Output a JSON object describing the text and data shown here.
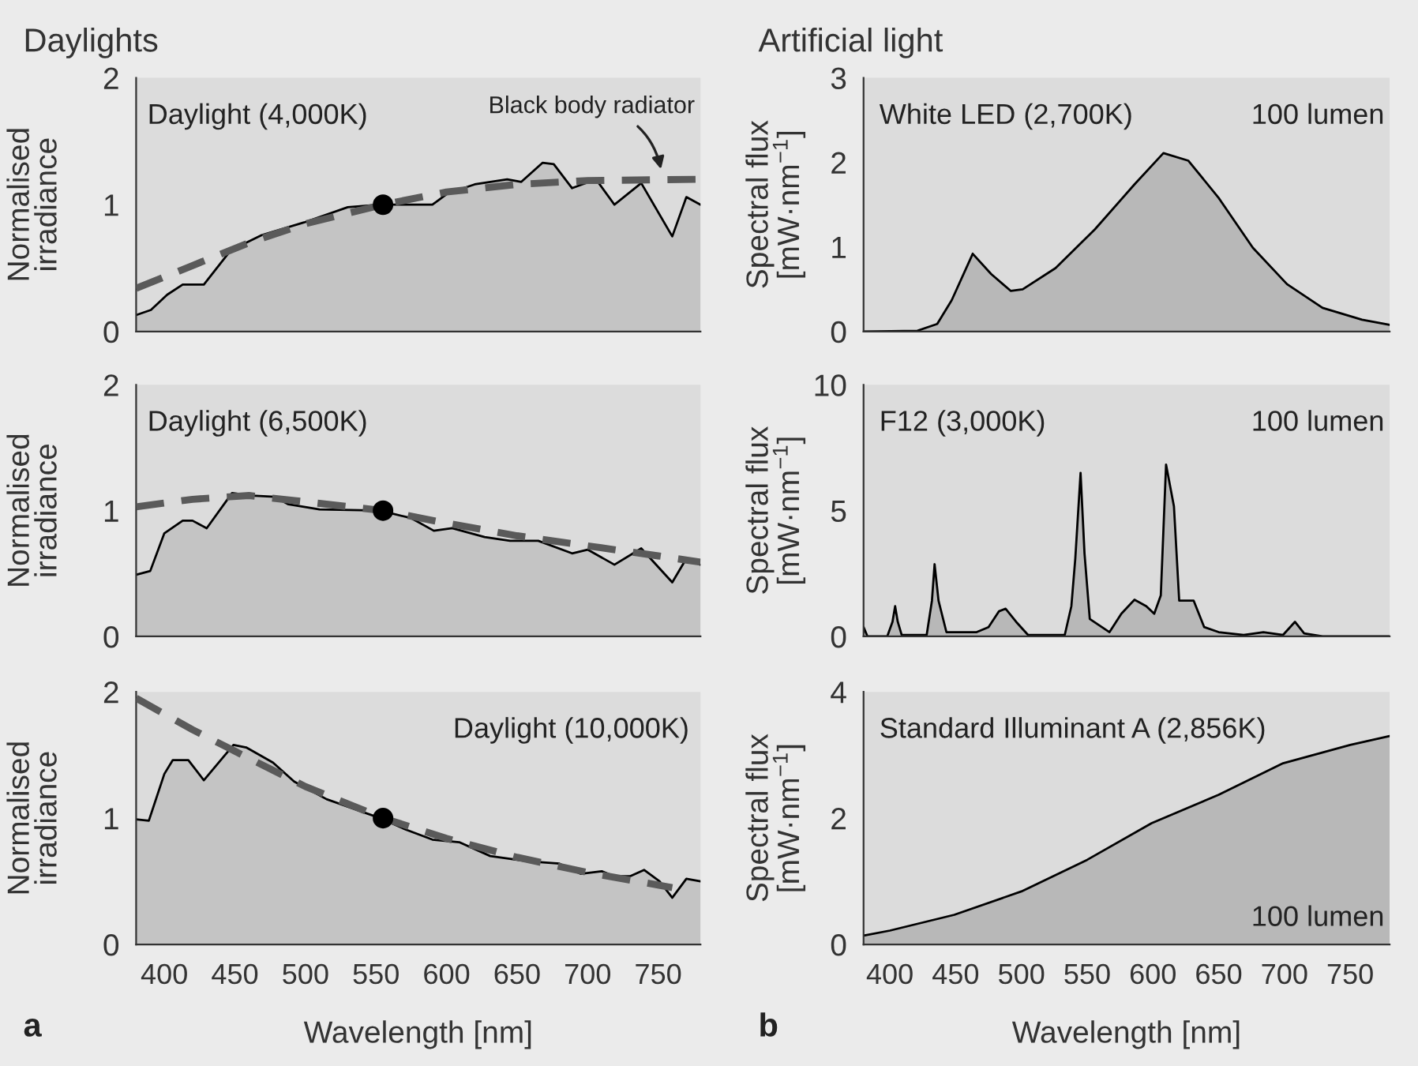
{
  "chart_data": [
    {
      "type": "area",
      "title": "Daylights",
      "ylabel": "Normalised\nirradiance",
      "xlim": [
        380,
        780
      ],
      "ylim": [
        0,
        2
      ],
      "xticks": [
        400,
        450,
        500,
        550,
        600,
        650,
        700,
        750
      ],
      "yticks": [
        0,
        1,
        2
      ],
      "tick_labels": "y",
      "grid": false,
      "legend": false,
      "annotations": [
        "Daylight (4,000K)",
        "Black body radiator"
      ],
      "series": [
        {
          "color": "#c4c4c4",
          "x": [
            380,
            390.5,
            402,
            413,
            428,
            447,
            469,
            499,
            530,
            553,
            568,
            590,
            601,
            620,
            643,
            653,
            668,
            676,
            689,
            706,
            719,
            738,
            760,
            770,
            780
          ],
          "values": [
            0.13,
            0.17,
            0.29,
            0.37,
            0.37,
            0.64,
            0.76,
            0.86,
            0.98,
            1.0,
            1.0,
            1.0,
            1.09,
            1.16,
            1.2,
            1.18,
            1.33,
            1.32,
            1.13,
            1.2,
            1.0,
            1.17,
            0.75,
            1.06,
            1.0
          ]
        },
        {
          "type": "line",
          "line_style": "dashed",
          "color": "#5a5a5a",
          "x": [
            380,
            420,
            460,
            500,
            555,
            600,
            650,
            700,
            780
          ],
          "values": [
            0.34,
            0.52,
            0.7,
            0.85,
            1.0,
            1.1,
            1.16,
            1.19,
            1.2
          ]
        },
        {
          "type": "scatter",
          "marker": "circle",
          "color": "#000000",
          "x": [
            555
          ],
          "values": [
            1.0
          ]
        }
      ]
    },
    {
      "type": "area",
      "title": "Artificial light",
      "ylabel": "Spectral flux\n[mW·nm$^{−1}$]",
      "xlim": [
        380,
        780
      ],
      "ylim": [
        0,
        3
      ],
      "xticks": [
        400,
        450,
        500,
        550,
        600,
        650,
        700,
        750
      ],
      "yticks": [
        0,
        1,
        2,
        3
      ],
      "tick_labels": "y",
      "grid": false,
      "legend": false,
      "annotations": [
        "White LED (2,700K)",
        "100 lumen"
      ],
      "series": [
        {
          "color": "#b8b8b8",
          "x": [
            380,
            421,
            436,
            447,
            463,
            477,
            492,
            501,
            526,
            556,
            586,
            608,
            627,
            650,
            676,
            702,
            729,
            759,
            780
          ],
          "values": [
            0,
            0.01,
            0.09,
            0.37,
            0.92,
            0.68,
            0.48,
            0.5,
            0.75,
            1.21,
            1.74,
            2.11,
            2.02,
            1.58,
            0.99,
            0.56,
            0.28,
            0.14,
            0.08
          ]
        }
      ]
    },
    {
      "type": "area",
      "ylabel": "Normalised\nirradiance",
      "xlim": [
        380,
        780
      ],
      "ylim": [
        0,
        2
      ],
      "xticks": [
        400,
        450,
        500,
        550,
        600,
        650,
        700,
        750
      ],
      "yticks": [
        0,
        1,
        2
      ],
      "tick_labels": "y",
      "grid": false,
      "legend": false,
      "annotations": [
        "Daylight (6,500K)"
      ],
      "series": [
        {
          "color": "#c4c4c4",
          "x": [
            380,
            390,
            400,
            413,
            420,
            430,
            448,
            462,
            478,
            488,
            510,
            553,
            575,
            591,
            604,
            627,
            645,
            665,
            689,
            700,
            719,
            738,
            760,
            770,
            780
          ],
          "values": [
            0.49,
            0.52,
            0.82,
            0.92,
            0.92,
            0.86,
            1.14,
            1.12,
            1.11,
            1.05,
            1.01,
            1.0,
            0.94,
            0.84,
            0.86,
            0.79,
            0.76,
            0.76,
            0.66,
            0.69,
            0.57,
            0.7,
            0.43,
            0.62,
            0.57
          ]
        },
        {
          "type": "line",
          "line_style": "dashed",
          "color": "#5a5a5a",
          "x": [
            380,
            420,
            460,
            500,
            555,
            600,
            650,
            700,
            750,
            780
          ],
          "values": [
            1.03,
            1.09,
            1.12,
            1.07,
            1.0,
            0.9,
            0.8,
            0.72,
            0.64,
            0.59
          ]
        },
        {
          "type": "scatter",
          "marker": "circle",
          "color": "#000000",
          "x": [
            555
          ],
          "values": [
            1.0
          ]
        }
      ]
    },
    {
      "type": "area",
      "ylabel": "Spectral flux\n[mW·nm$^{−1}$]",
      "xlim": [
        380,
        780
      ],
      "ylim": [
        0,
        10
      ],
      "xticks": [
        400,
        450,
        500,
        550,
        600,
        650,
        700,
        750
      ],
      "yticks": [
        0,
        5,
        10
      ],
      "tick_labels": "y",
      "grid": false,
      "legend": false,
      "annotations": [
        "F12 (3,000K)",
        "100 lumen"
      ],
      "series": [
        {
          "color": "#b8b8b8",
          "x": [
            380,
            383,
            398,
            402,
            404,
            406,
            409,
            428,
            432,
            434,
            437,
            443,
            466,
            475,
            483,
            488,
            496,
            505,
            533,
            538,
            541,
            545,
            548,
            552,
            567,
            576,
            586,
            595,
            601,
            606,
            610,
            616,
            620,
            631,
            639,
            650,
            669,
            684,
            699,
            708,
            715,
            729,
            780
          ],
          "values": [
            0.37,
            0,
            0,
            0.58,
            1.2,
            0.58,
            0.06,
            0.06,
            1.42,
            2.87,
            1.42,
            0.17,
            0.17,
            0.37,
            1.0,
            1.1,
            0.58,
            0.06,
            0.06,
            1.2,
            3.1,
            6.5,
            3.3,
            0.69,
            0.17,
            0.9,
            1.46,
            1.2,
            0.9,
            1.63,
            6.83,
            5.17,
            1.42,
            1.42,
            0.37,
            0.17,
            0.06,
            0.17,
            0.06,
            0.58,
            0.12,
            0,
            0
          ]
        }
      ]
    },
    {
      "type": "area",
      "xlabel": "Wavelength [nm]",
      "ylabel": "Normalised\nirradiance",
      "xlim": [
        380,
        780
      ],
      "ylim": [
        0,
        2
      ],
      "xticks": [
        400,
        450,
        500,
        550,
        600,
        650,
        700,
        750
      ],
      "yticks": [
        0,
        1,
        2
      ],
      "grid": false,
      "legend": false,
      "annotations": [
        "Daylight (10,000K)",
        "a"
      ],
      "series": [
        {
          "color": "#c4c4c4",
          "x": [
            380,
            389,
            400,
            406,
            417,
            428,
            449,
            458,
            477,
            492,
            515,
            553,
            571,
            590,
            609,
            631,
            657,
            680,
            695,
            710,
            719,
            730,
            740,
            751,
            760,
            770,
            780
          ],
          "values": [
            0.99,
            0.98,
            1.35,
            1.46,
            1.46,
            1.3,
            1.58,
            1.56,
            1.44,
            1.29,
            1.15,
            1.0,
            0.91,
            0.83,
            0.81,
            0.7,
            0.66,
            0.64,
            0.56,
            0.58,
            0.54,
            0.54,
            0.59,
            0.5,
            0.37,
            0.52,
            0.5
          ]
        },
        {
          "type": "line",
          "line_style": "dashed",
          "color": "#5a5a5a",
          "x": [
            380,
            420,
            450,
            500,
            555,
            600,
            650,
            700,
            750,
            760
          ],
          "values": [
            1.95,
            1.7,
            1.53,
            1.25,
            1.0,
            0.84,
            0.69,
            0.57,
            0.47,
            0.45
          ]
        },
        {
          "type": "scatter",
          "marker": "circle",
          "color": "#000000",
          "x": [
            555
          ],
          "values": [
            1.0
          ]
        }
      ]
    },
    {
      "type": "area",
      "xlabel": "Wavelength [nm]",
      "ylabel": "Spectral flux\n[mW·nm$^{−1}$]",
      "xlim": [
        380,
        780
      ],
      "ylim": [
        0,
        4
      ],
      "xticks": [
        400,
        450,
        500,
        550,
        600,
        650,
        700,
        750
      ],
      "yticks": [
        0,
        2,
        4
      ],
      "grid": false,
      "legend": false,
      "annotations": [
        "Standard Illuminant A (2,856K)",
        "100 lumen",
        "b"
      ],
      "series": [
        {
          "color": "#b8b8b8",
          "x": [
            380,
            400,
            449,
            500,
            550,
            599,
            650,
            699,
            750,
            780
          ],
          "values": [
            0.14,
            0.22,
            0.47,
            0.84,
            1.34,
            1.92,
            2.37,
            2.87,
            3.16,
            3.3
          ]
        }
      ]
    }
  ]
}
